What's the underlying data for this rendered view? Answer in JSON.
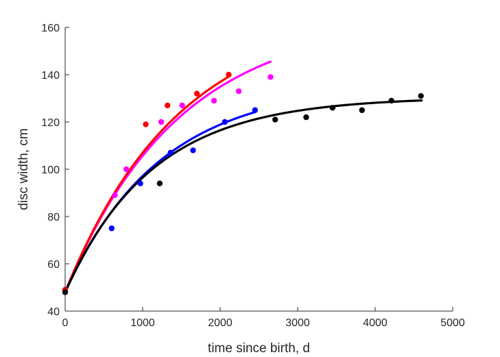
{
  "chart_data": {
    "type": "scatter",
    "xlabel": "time since birth, d",
    "ylabel": "disc width, cm",
    "xlim": [
      0,
      5000
    ],
    "ylim": [
      40,
      160
    ],
    "xticks": [
      0,
      1000,
      2000,
      3000,
      4000,
      5000
    ],
    "yticks": [
      40,
      60,
      80,
      100,
      120,
      140,
      160
    ],
    "grid": false,
    "legend": "none",
    "box": "left-bottom axes only",
    "series": [
      {
        "color": "#0000ff",
        "points": [
          [
            0,
            48
          ],
          [
            600,
            75
          ],
          [
            970,
            94
          ],
          [
            1360,
            107
          ],
          [
            1650,
            108
          ],
          [
            2060,
            120
          ],
          [
            2450,
            125
          ]
        ],
        "fit": {
          "model": "von Bertalanffy",
          "x_range": [
            0,
            2450
          ],
          "asymptote": 136.1,
          "start": 48,
          "rate": 0.000816
        }
      },
      {
        "color": "#ff00ff",
        "points": [
          [
            0,
            49
          ],
          [
            640,
            89
          ],
          [
            790,
            100
          ],
          [
            1240,
            120
          ],
          [
            1510,
            127
          ],
          [
            1920,
            129
          ],
          [
            2240,
            133
          ],
          [
            2650,
            139
          ]
        ],
        "fit": {
          "model": "von Bertalanffy",
          "x_range": [
            0,
            2650
          ],
          "asymptote": 164.6,
          "start": 48,
          "rate": 0.000683
        }
      },
      {
        "color": "#ff0000",
        "points": [
          [
            0,
            49
          ],
          [
            1040,
            119
          ],
          [
            1320,
            127
          ],
          [
            1700,
            132
          ],
          [
            2110,
            140
          ]
        ],
        "fit": {
          "model": "von Bertalanffy",
          "x_range": [
            0,
            2120
          ],
          "asymptote": 167.8,
          "start": 48,
          "rate": 0.000678
        }
      },
      {
        "color": "#000000",
        "points": [
          [
            0,
            48
          ],
          [
            1220,
            94
          ],
          [
            2710,
            121
          ],
          [
            3110,
            122
          ],
          [
            3450,
            126
          ],
          [
            3830,
            125
          ],
          [
            4210,
            129
          ],
          [
            4590,
            131
          ]
        ],
        "fit": {
          "model": "von Bertalanffy",
          "x_range": [
            0,
            4600
          ],
          "asymptote": 130.5,
          "start": 48,
          "rate": 0.000886
        }
      }
    ]
  }
}
